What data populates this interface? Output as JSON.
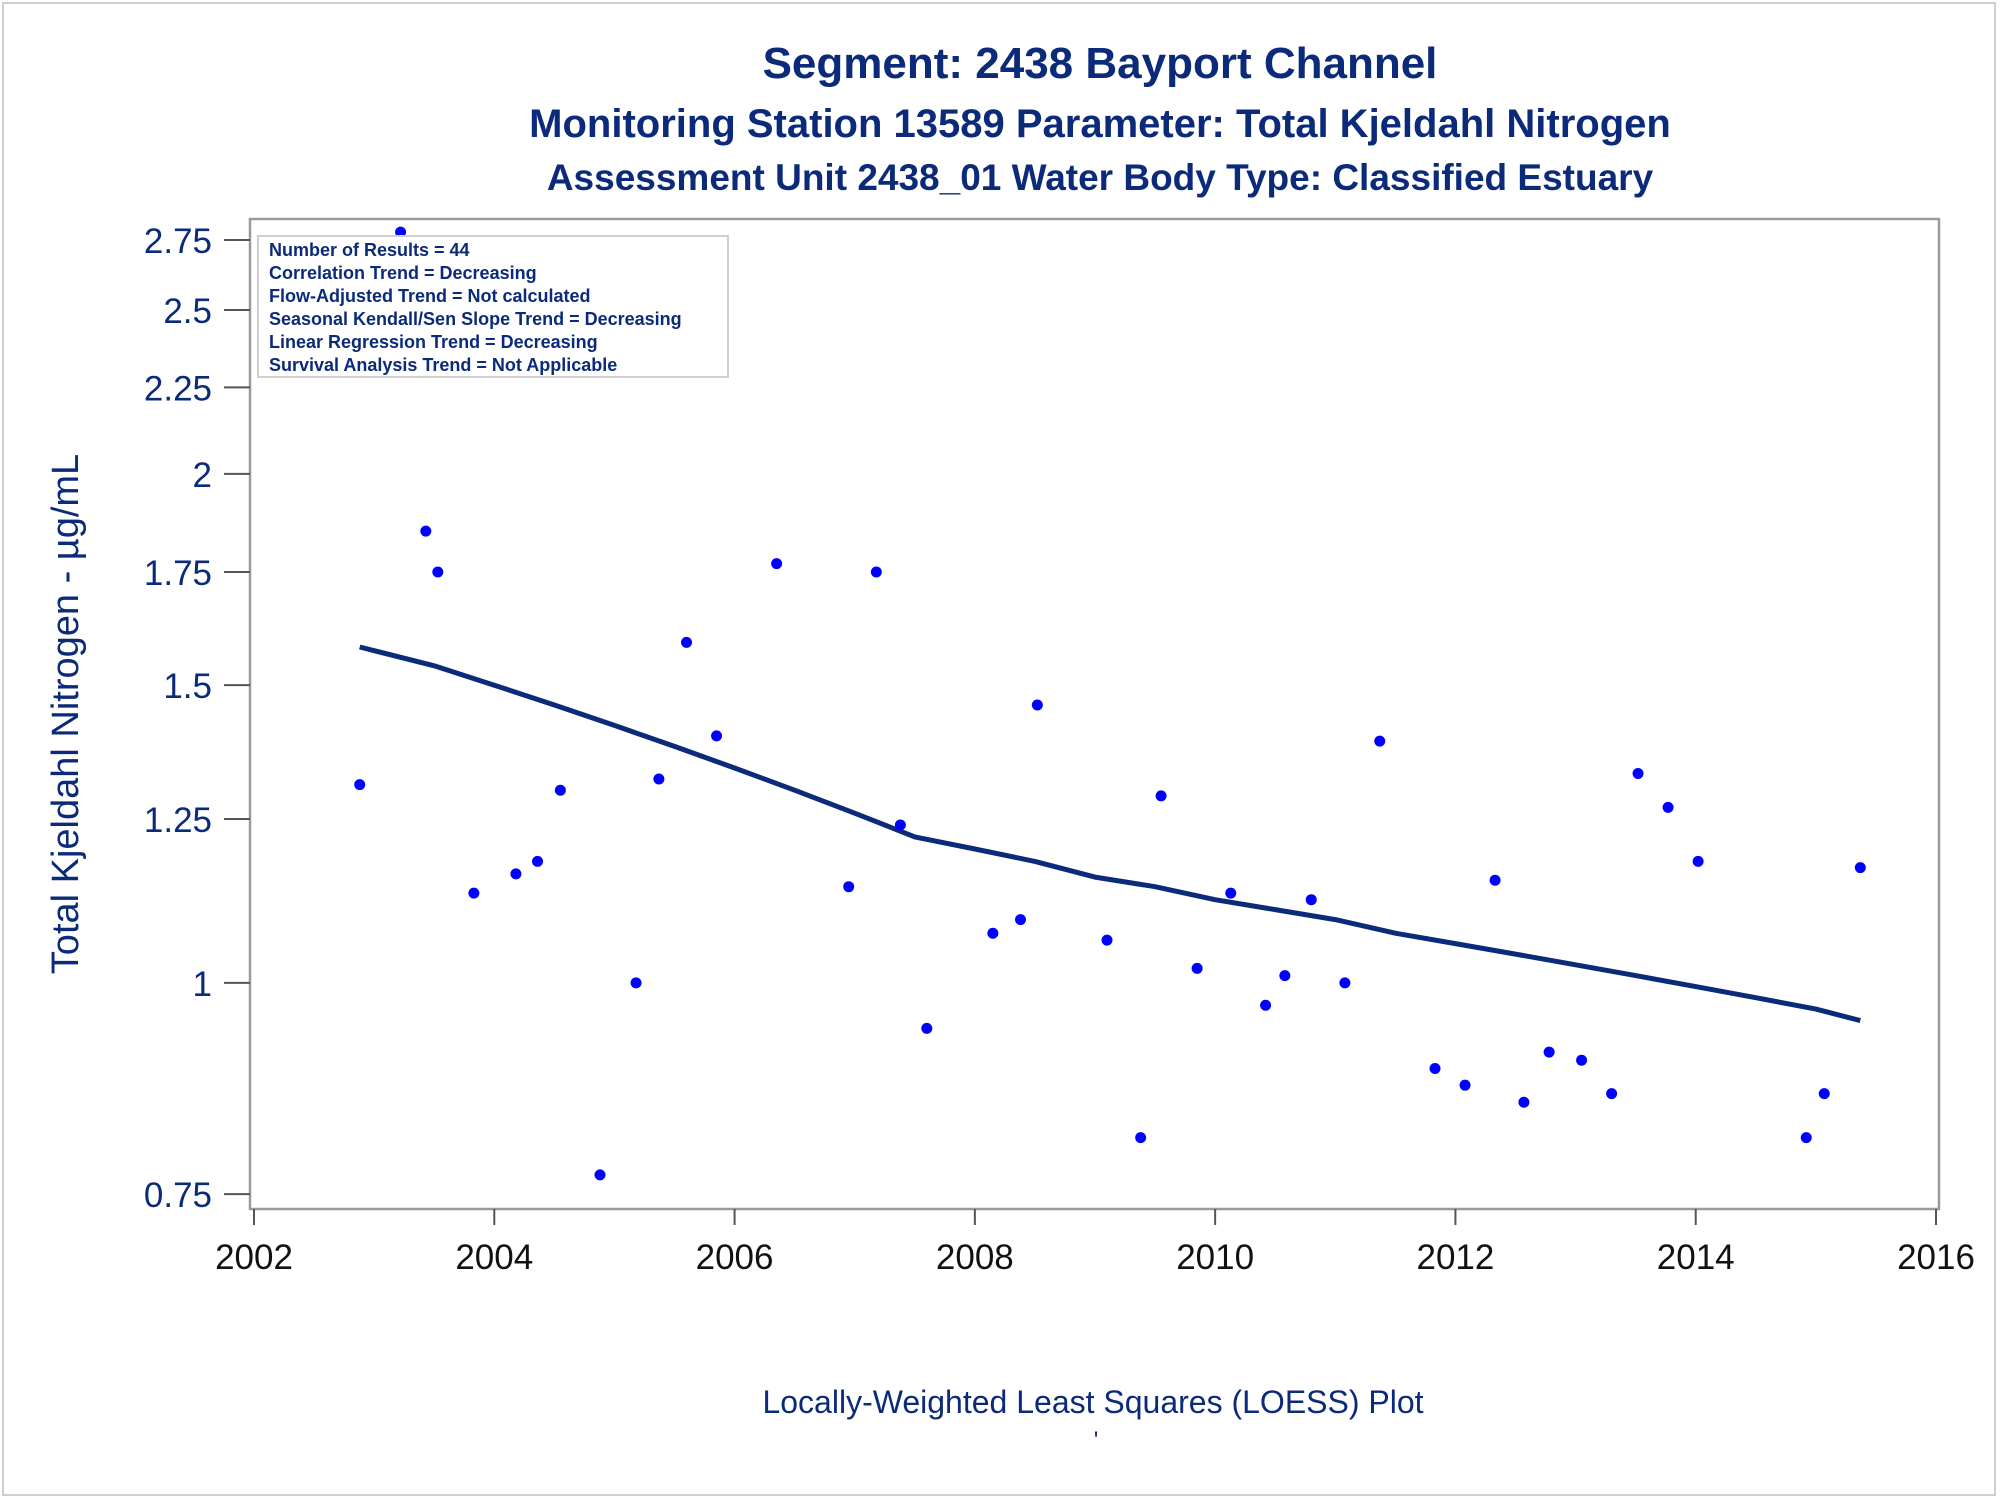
{
  "chart_data": {
    "type": "scatter",
    "title": "Segment: 2438  Bayport Channel",
    "subtitle": "Monitoring Station 13589 Parameter: Total Kjeldahl Nitrogen",
    "subtitle2": "Assessment Unit 2438_01   Water Body Type: Classified Estuary",
    "xlabel": "Locally-Weighted Least Squares (LOESS) Plot",
    "footnote": "'",
    "ylabel": "Total Kjeldahl Nitrogen -  µg/mL",
    "xlim": [
      2002,
      2016
    ],
    "ylim": [
      0.735,
      2.83
    ],
    "y_scale": "log",
    "grid": false,
    "x_ticks": [
      2002,
      2004,
      2006,
      2008,
      2010,
      2012,
      2014,
      2016
    ],
    "x_tick_labels": [
      "2002",
      "2004",
      "2006",
      "2008",
      "2010",
      "2012",
      "2014",
      "2016"
    ],
    "y_ticks": [
      0.75,
      1,
      1.25,
      1.5,
      1.75,
      2,
      2.25,
      2.5,
      2.75
    ],
    "y_tick_labels": [
      "0.75",
      "1",
      "1.25",
      "1.5",
      "1.75",
      "2",
      "2.25",
      "2.5",
      "2.75"
    ],
    "colors": {
      "points": "#0000ff",
      "line": "#0b2a7a",
      "text": "#0b2a7a"
    },
    "stats_box": [
      "Number of Results = 44",
      "Correlation Trend = Decreasing",
      "Flow-Adjusted Trend = Not calculated",
      "Seasonal Kendall/Sen Slope Trend = Decreasing",
      "Linear Regression Trend = Decreasing",
      "Survival Analysis Trend = Not Applicable"
    ],
    "series": [
      {
        "kind": "points",
        "x": [
          2002.88,
          2003.22,
          2003.43,
          2003.53,
          2003.83,
          2004.18,
          2004.36,
          2004.55,
          2004.88,
          2005.18,
          2005.37,
          2005.6,
          2005.85,
          2006.35,
          2006.95,
          2007.18,
          2007.38,
          2007.6,
          2008.15,
          2008.38,
          2008.52,
          2009.1,
          2009.38,
          2009.55,
          2009.85,
          2010.13,
          2010.42,
          2010.58,
          2010.8,
          2011.08,
          2011.37,
          2011.83,
          2012.08,
          2012.33,
          2012.57,
          2012.78,
          2013.05,
          2013.3,
          2013.52,
          2013.77,
          2014.02,
          2014.92,
          2015.07,
          2015.37
        ],
        "y": [
          1.31,
          2.78,
          1.85,
          1.75,
          1.13,
          1.16,
          1.18,
          1.3,
          0.77,
          1.0,
          1.32,
          1.59,
          1.4,
          1.77,
          1.14,
          1.75,
          1.24,
          0.94,
          1.07,
          1.09,
          1.46,
          1.06,
          0.81,
          1.29,
          1.02,
          1.13,
          0.97,
          1.01,
          1.12,
          1.0,
          1.39,
          0.89,
          0.87,
          1.15,
          0.85,
          0.91,
          0.9,
          0.86,
          1.33,
          1.27,
          1.18,
          0.81,
          0.86,
          1.17
        ]
      },
      {
        "kind": "loess",
        "x": [
          2002.88,
          2003.5,
          2004.0,
          2004.5,
          2005.0,
          2005.5,
          2006.0,
          2006.5,
          2007.0,
          2007.5,
          2008.0,
          2008.5,
          2009.0,
          2009.5,
          2010.0,
          2010.5,
          2011.0,
          2011.5,
          2012.0,
          2012.5,
          2013.0,
          2013.5,
          2014.0,
          2014.5,
          2015.0,
          2015.37
        ],
        "y": [
          1.58,
          1.54,
          1.5,
          1.46,
          1.42,
          1.38,
          1.34,
          1.3,
          1.26,
          1.22,
          1.2,
          1.18,
          1.155,
          1.14,
          1.12,
          1.105,
          1.09,
          1.07,
          1.055,
          1.04,
          1.025,
          1.01,
          0.995,
          0.98,
          0.965,
          0.95
        ]
      }
    ]
  }
}
